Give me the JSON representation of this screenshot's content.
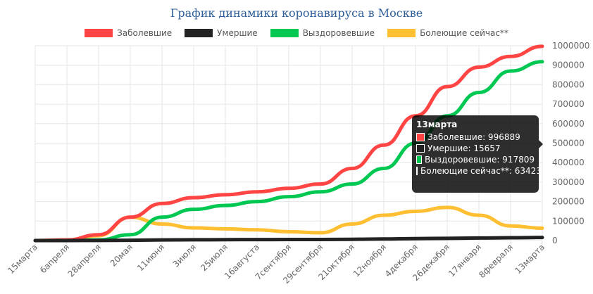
{
  "chart_data": {
    "type": "line",
    "title": "График динамики коронавируса в Москве",
    "categories": [
      "15марта",
      "6апреля",
      "28апреля",
      "20мая",
      "11июня",
      "3июля",
      "25июля",
      "16августа",
      "7сентября",
      "29сентября",
      "21октября",
      "12ноября",
      "4декабря",
      "26декабря",
      "17января",
      "8февраля",
      "13марта"
    ],
    "ylim": [
      0,
      1000000
    ],
    "yticks": [
      "0",
      "100000",
      "200000",
      "300000",
      "400000",
      "500000",
      "600000",
      "700000",
      "800000",
      "900000",
      "1000000"
    ],
    "ytick_values": [
      0,
      100000,
      200000,
      300000,
      400000,
      500000,
      600000,
      700000,
      800000,
      900000,
      1000000
    ],
    "legend_position": "top",
    "grid": true,
    "series": [
      {
        "name": "Заболевшие",
        "color": "#ff4444",
        "values": [
          0,
          3000,
          30000,
          120000,
          190000,
          220000,
          235000,
          250000,
          268000,
          290000,
          370000,
          490000,
          640000,
          790000,
          890000,
          945000,
          996889
        ]
      },
      {
        "name": "Умершие",
        "color": "#222222",
        "values": [
          0,
          100,
          500,
          1500,
          3000,
          4000,
          4500,
          5000,
          5200,
          5500,
          6500,
          8000,
          10000,
          11500,
          13000,
          14500,
          15657
        ]
      },
      {
        "name": "Выздоровевшие",
        "color": "#00c853",
        "values": [
          0,
          300,
          3000,
          30000,
          120000,
          160000,
          180000,
          200000,
          225000,
          250000,
          290000,
          370000,
          500000,
          640000,
          760000,
          870000,
          917809
        ]
      },
      {
        "name": "Болеющие сейчас**",
        "color": "#ffbf33",
        "values": [
          0,
          2500,
          25000,
          120000,
          85000,
          65000,
          60000,
          55000,
          45000,
          40000,
          85000,
          130000,
          150000,
          170000,
          130000,
          75000,
          63423
        ]
      }
    ],
    "tooltip": {
      "title": "13марта",
      "rows": [
        "Заболевшие: 996889",
        "Умершие: 15657",
        "Выздоровевшие: 917809",
        "Болеющие сейчас**: 63423"
      ]
    }
  }
}
